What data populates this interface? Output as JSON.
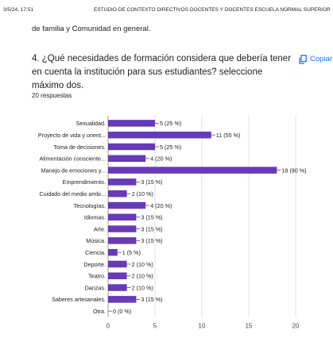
{
  "header": {
    "timestamp": "3/5/24, 17:51",
    "doc_title": "ESTUDIO DE CONTEXTO DIRECTIVOS DOCENTES Y DOCENTES ESCUELA NORMAL SUPERIOR"
  },
  "previous_text": "de familia y Comunidad en general.",
  "question": {
    "title": "4. ¿Qué necesidades de formación considera que debería tener en cuenta la institución para sus estudiantes? seleccione máximo dos.",
    "response_count": "20 respuestas",
    "copy_label": "Copiar"
  },
  "colors": {
    "bar": "#673ab7",
    "grid": "#e0e0e0",
    "copy": "#1a73e8"
  },
  "icons": {
    "copy": "copy-icon"
  },
  "chart_data": {
    "type": "bar",
    "orientation": "horizontal",
    "title": "",
    "xlabel": "",
    "ylabel": "",
    "xlim": [
      0,
      20
    ],
    "x_ticks": [
      "0",
      "5",
      "10",
      "15",
      "20"
    ],
    "grid": true,
    "categories": [
      "Sexualidad.",
      "Proyecto de vida y orient...",
      "Toma de decisiones.",
      "Alimentación consciente...",
      "Manejo de emociones y...",
      "Emprendimiento.",
      "Cuidado del medio ambi...",
      "Tecnologías.",
      "Idiomas.",
      "Arte.",
      "Música.",
      "Ciencia.",
      "Deporte.",
      "Teatro.",
      "Danzas.",
      "Saberes artesanales.",
      "Otra."
    ],
    "values": [
      5,
      11,
      5,
      4,
      18,
      3,
      2,
      4,
      3,
      3,
      3,
      1,
      2,
      2,
      2,
      3,
      0
    ],
    "data_labels": [
      "5 (25 %)",
      "11 (55 %)",
      "5 (25 %)",
      "4 (20 %)",
      "18 (90 %)",
      "3 (15 %)",
      "2 (10 %)",
      "4 (20 %)",
      "3 (15 %)",
      "3 (15 %)",
      "3 (15 %)",
      "1 (5 %)",
      "2 (10 %)",
      "2 (10 %)",
      "2 (10 %)",
      "3 (15 %)",
      "0 (0 %)"
    ]
  }
}
